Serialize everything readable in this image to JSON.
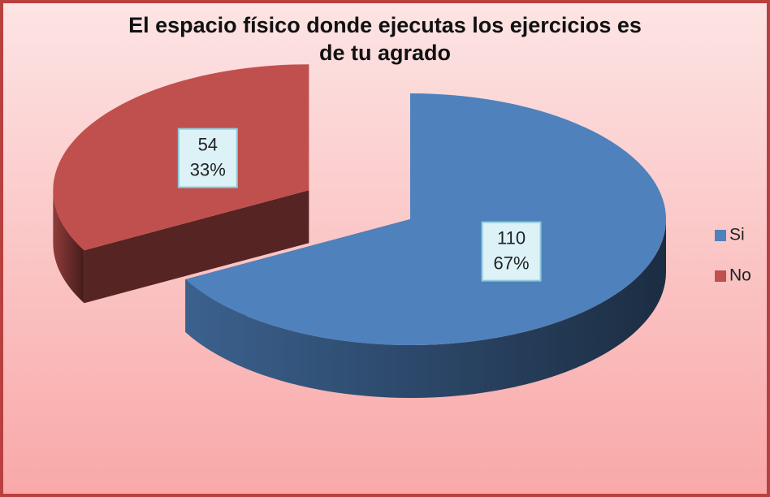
{
  "chart_data": {
    "type": "pie",
    "title": "El espacio físico donde ejecutas los ejercicios es de tu agrado",
    "categories": [
      "Si",
      "No"
    ],
    "values": [
      110,
      54
    ],
    "percent_labels": [
      "67%",
      "33%"
    ],
    "colors": [
      "#4f81bd",
      "#c0504d"
    ],
    "legend": "right",
    "exploded": [
      false,
      true
    ]
  }
}
